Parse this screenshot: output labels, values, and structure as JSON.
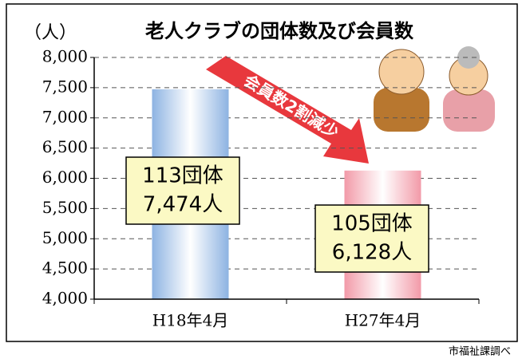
{
  "chart_data": {
    "type": "bar",
    "title": "老人クラブの団体数及び会員数",
    "y_unit": "（人）",
    "categories": [
      "H18年4月",
      "H27年4月"
    ],
    "values": [
      7474,
      6128
    ],
    "value_labels": [
      "7,474人",
      "6,128人"
    ],
    "group_labels": [
      "113団体",
      "105団体"
    ],
    "colors": [
      "#8db3e2",
      "#f29aa8"
    ],
    "ylim": [
      4000,
      8000
    ],
    "yticks": [
      {
        "value": 4000,
        "label": "4,000"
      },
      {
        "value": 4500,
        "label": "4,500"
      },
      {
        "value": 5000,
        "label": "5,000"
      },
      {
        "value": 5500,
        "label": "5,500"
      },
      {
        "value": 6000,
        "label": "6,000"
      },
      {
        "value": 6500,
        "label": "6,500"
      },
      {
        "value": 7000,
        "label": "7,000"
      },
      {
        "value": 7500,
        "label": "7,500"
      },
      {
        "value": 8000,
        "label": "8,000"
      }
    ],
    "grid": true,
    "annotation": "会員数2割減少",
    "source": "市福祉課調べ"
  }
}
